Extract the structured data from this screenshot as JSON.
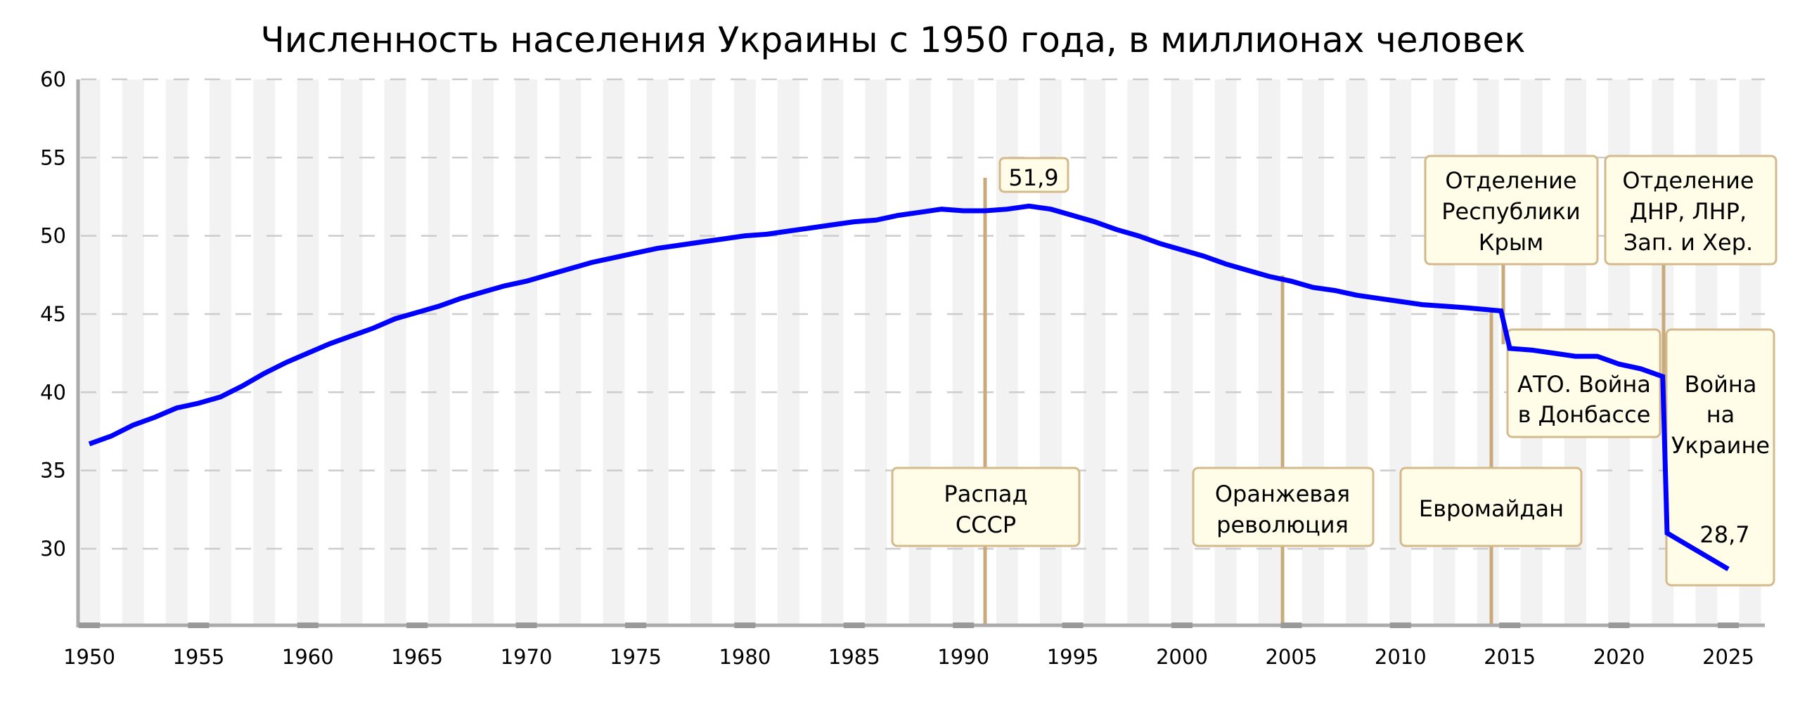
{
  "chart_data": {
    "type": "line",
    "title": "Численность населения Украины с 1950 года, в миллионах человек",
    "xlabel": "",
    "ylabel": "",
    "xlim": [
      1949.5,
      2026.7
    ],
    "ylim": [
      25,
      60
    ],
    "grid": true,
    "x_ticks": [
      "1950",
      "1955",
      "1960",
      "1965",
      "1970",
      "1975",
      "1980",
      "1985",
      "1990",
      "1995",
      "2000",
      "2005",
      "2010",
      "2015",
      "2020",
      "2025"
    ],
    "y_ticks": [
      "30",
      "35",
      "40",
      "45",
      "50",
      "55",
      "60"
    ],
    "line_color": "#0000ff",
    "series": [
      {
        "points": [
          [
            1950,
            36.7
          ],
          [
            1951,
            37.2
          ],
          [
            1952,
            37.9
          ],
          [
            1953,
            38.4
          ],
          [
            1954,
            39.0
          ],
          [
            1955,
            39.3
          ],
          [
            1956,
            39.7
          ],
          [
            1957,
            40.4
          ],
          [
            1958,
            41.2
          ],
          [
            1959,
            41.9
          ],
          [
            1960,
            42.5
          ],
          [
            1961,
            43.1
          ],
          [
            1962,
            43.6
          ],
          [
            1963,
            44.1
          ],
          [
            1964,
            44.7
          ],
          [
            1965,
            45.1
          ],
          [
            1966,
            45.5
          ],
          [
            1967,
            46.0
          ],
          [
            1968,
            46.4
          ],
          [
            1969,
            46.8
          ],
          [
            1970,
            47.1
          ],
          [
            1971,
            47.5
          ],
          [
            1972,
            47.9
          ],
          [
            1973,
            48.3
          ],
          [
            1974,
            48.6
          ],
          [
            1975,
            48.9
          ],
          [
            1976,
            49.2
          ],
          [
            1977,
            49.4
          ],
          [
            1978,
            49.6
          ],
          [
            1979,
            49.8
          ],
          [
            1980,
            50.0
          ],
          [
            1981,
            50.1
          ],
          [
            1982,
            50.3
          ],
          [
            1983,
            50.5
          ],
          [
            1984,
            50.7
          ],
          [
            1985,
            50.9
          ],
          [
            1986,
            51.0
          ],
          [
            1987,
            51.3
          ],
          [
            1988,
            51.5
          ],
          [
            1989,
            51.7
          ],
          [
            1990,
            51.6
          ],
          [
            1991,
            51.6
          ],
          [
            1992,
            51.7
          ],
          [
            1993,
            51.9
          ],
          [
            1994,
            51.7
          ],
          [
            1995,
            51.3
          ],
          [
            1996,
            50.9
          ],
          [
            1997,
            50.4
          ],
          [
            1998,
            50.0
          ],
          [
            1999,
            49.5
          ],
          [
            2000,
            49.1
          ],
          [
            2001,
            48.7
          ],
          [
            2002,
            48.2
          ],
          [
            2003,
            47.8
          ],
          [
            2004,
            47.4
          ],
          [
            2005,
            47.1
          ],
          [
            2006,
            46.7
          ],
          [
            2007,
            46.5
          ],
          [
            2008,
            46.2
          ],
          [
            2009,
            46.0
          ],
          [
            2010,
            45.8
          ],
          [
            2011,
            45.6
          ],
          [
            2012,
            45.5
          ],
          [
            2013,
            45.4
          ],
          [
            2014.6,
            45.2
          ],
          [
            2015,
            42.8
          ],
          [
            2016,
            42.7
          ],
          [
            2017,
            42.5
          ],
          [
            2018,
            42.3
          ],
          [
            2019,
            42.3
          ],
          [
            2020,
            41.8
          ],
          [
            2021,
            41.5
          ],
          [
            2022,
            41.0
          ],
          [
            2022.2,
            31.0
          ],
          [
            2025,
            28.7
          ]
        ]
      }
    ],
    "annotations": [
      {
        "lines": [
          "51,9"
        ]
      },
      {
        "lines": [
          "Распад",
          "СССР"
        ]
      },
      {
        "lines": [
          "Оранжевая",
          "революция"
        ]
      },
      {
        "lines": [
          "Евромайдан"
        ]
      },
      {
        "lines": [
          "Отделение",
          "Республики",
          "Крым"
        ]
      },
      {
        "lines": [
          "Отделение",
          "ДНР, ЛНР,",
          "Зап. и Хер."
        ]
      },
      {
        "lines": [
          "АТО. Война",
          "в Донбассе"
        ]
      },
      {
        "lines": [
          "Война",
          "на",
          "Украине"
        ]
      },
      {
        "lines": [
          "28,7"
        ]
      }
    ]
  }
}
